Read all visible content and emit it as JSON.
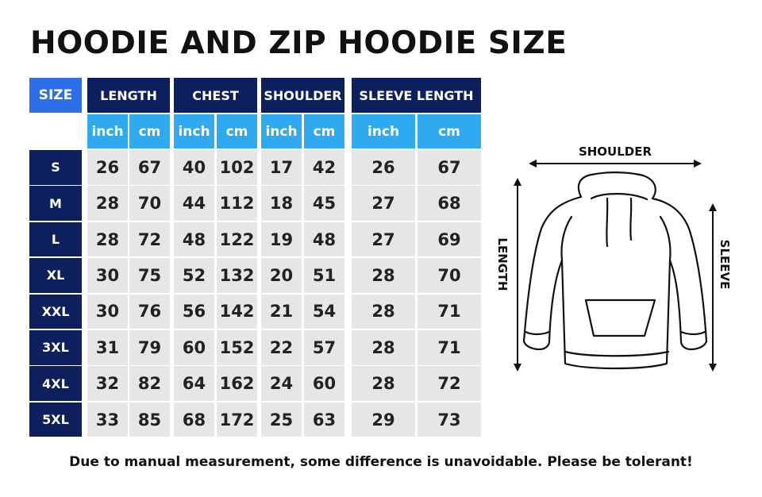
{
  "title": "HOODIE AND ZIP HOODIE SIZE",
  "table": {
    "size_header": "SIZE",
    "groups": [
      "LENGTH",
      "CHEST",
      "SHOULDER",
      "SLEEVE LENGTH"
    ],
    "units": [
      "inch",
      "cm",
      "inch",
      "cm",
      "inch",
      "cm",
      "inch",
      "cm"
    ],
    "rows": [
      {
        "size": "S",
        "values": [
          "26",
          "67",
          "40",
          "102",
          "17",
          "42",
          "26",
          "67"
        ]
      },
      {
        "size": "M",
        "values": [
          "28",
          "70",
          "44",
          "112",
          "18",
          "45",
          "27",
          "68"
        ]
      },
      {
        "size": "L",
        "values": [
          "28",
          "72",
          "48",
          "122",
          "19",
          "48",
          "27",
          "69"
        ]
      },
      {
        "size": "XL",
        "values": [
          "30",
          "75",
          "52",
          "132",
          "20",
          "51",
          "28",
          "70"
        ]
      },
      {
        "size": "XXL",
        "values": [
          "30",
          "76",
          "56",
          "142",
          "21",
          "54",
          "28",
          "71"
        ]
      },
      {
        "size": "3XL",
        "values": [
          "31",
          "79",
          "60",
          "152",
          "22",
          "57",
          "28",
          "71"
        ]
      },
      {
        "size": "4XL",
        "values": [
          "32",
          "82",
          "64",
          "162",
          "24",
          "60",
          "28",
          "72"
        ]
      },
      {
        "size": "5XL",
        "values": [
          "33",
          "85",
          "68",
          "172",
          "25",
          "63",
          "29",
          "73"
        ]
      }
    ]
  },
  "diagram": {
    "shoulder_label": "SHOULDER",
    "length_label": "LENGTH",
    "sleeve_label": "SLEEVE"
  },
  "footnote": "Due to manual measurement, some difference is unavoidable. Please be tolerant!",
  "colors": {
    "navy": "#0d1f5c",
    "size_blue": "#2f6fe5",
    "unit_blue": "#2eaaf0",
    "cell_gray": "#e6e6e6"
  }
}
